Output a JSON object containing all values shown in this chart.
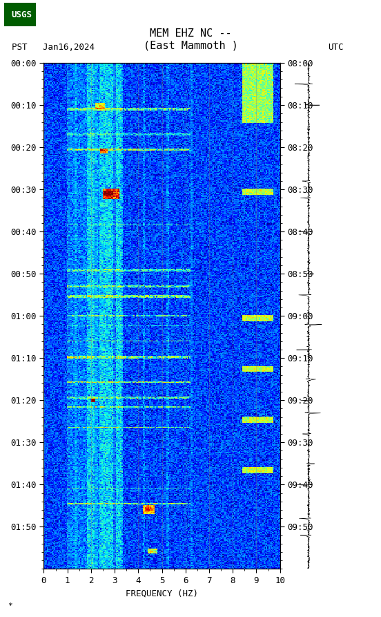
{
  "title_line1": "MEM EHZ NC --",
  "title_line2": "(East Mammoth )",
  "left_label": "PST   Jan16,2024",
  "right_label": "UTC",
  "xlabel": "FREQUENCY (HZ)",
  "xlim": [
    0,
    10
  ],
  "ylim_minutes": [
    0,
    120
  ],
  "left_ytick_labels": [
    "00:00",
    "00:10",
    "00:20",
    "00:30",
    "00:40",
    "00:50",
    "01:00",
    "01:10",
    "01:20",
    "01:30",
    "01:40",
    "01:50"
  ],
  "right_ytick_labels": [
    "08:00",
    "08:10",
    "08:20",
    "08:30",
    "08:40",
    "08:50",
    "09:00",
    "09:10",
    "09:20",
    "09:30",
    "09:40",
    "09:50"
  ],
  "xtick_labels": [
    "0",
    "1",
    "2",
    "3",
    "4",
    "5",
    "6",
    "7",
    "8",
    "9",
    "10"
  ],
  "bg_color": "#000080",
  "grid_color": "#808080",
  "grid_alpha": 0.5,
  "fig_bg_color": "#ffffff",
  "colormap": "jet",
  "freq_resolution": 200,
  "time_resolution": 600
}
